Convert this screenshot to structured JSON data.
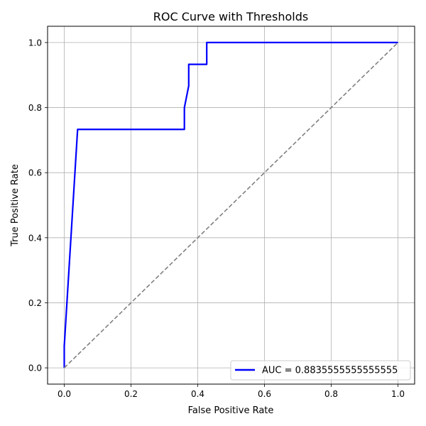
{
  "chart_data": {
    "type": "line",
    "title": "ROC Curve with Thresholds",
    "xlabel": "False Positive Rate",
    "ylabel": "True Positive Rate",
    "xlim": [
      -0.05,
      1.05
    ],
    "ylim": [
      -0.05,
      1.05
    ],
    "xticks": [
      0.0,
      0.2,
      0.4,
      0.6,
      0.8,
      1.0
    ],
    "yticks": [
      0.0,
      0.2,
      0.4,
      0.6,
      0.8,
      1.0
    ],
    "xtick_labels": [
      "0.0",
      "0.2",
      "0.4",
      "0.6",
      "0.8",
      "1.0"
    ],
    "ytick_labels": [
      "0.0",
      "0.2",
      "0.4",
      "0.6",
      "0.8",
      "1.0"
    ],
    "grid": true,
    "legend_position": "lower-right",
    "series": [
      {
        "name": "AUC = 0.8835555555555555",
        "style": "solid",
        "color": "#0000ff",
        "x": [
          0.0,
          0.0,
          0.032,
          0.04,
          0.04,
          0.36,
          0.36,
          0.36,
          0.373,
          0.373,
          0.427,
          0.427,
          1.0
        ],
        "y": [
          0.0,
          0.067,
          0.6,
          0.733,
          0.733,
          0.733,
          0.733,
          0.8,
          0.867,
          0.933,
          0.933,
          1.0,
          1.0
        ]
      },
      {
        "style": "dashed",
        "color": "#808080",
        "x": [
          0.0,
          1.0
        ],
        "y": [
          0.0,
          1.0
        ]
      }
    ]
  }
}
